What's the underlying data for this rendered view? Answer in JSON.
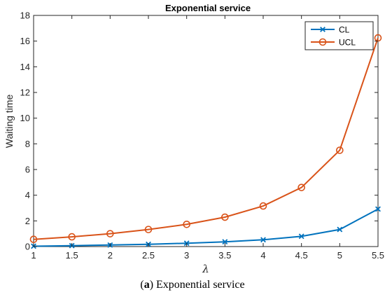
{
  "chart_data": {
    "type": "line",
    "title": "Exponential service",
    "xlabel": "λ",
    "ylabel": "Waiting time",
    "xlim": [
      1,
      5.5
    ],
    "ylim": [
      0,
      18
    ],
    "x_ticks": [
      "1",
      "1.5",
      "2",
      "2.5",
      "3",
      "3.5",
      "4",
      "4.5",
      "5",
      "5.5"
    ],
    "y_ticks": [
      "0",
      "2",
      "4",
      "6",
      "8",
      "10",
      "12",
      "14",
      "16",
      "18"
    ],
    "x": [
      1,
      1.5,
      2,
      2.5,
      3,
      3.5,
      4,
      4.5,
      5,
      5.5
    ],
    "series": [
      {
        "name": "CL",
        "color": "#0072BD",
        "marker": "x",
        "values": [
          0.03,
          0.07,
          0.12,
          0.18,
          0.26,
          0.37,
          0.53,
          0.8,
          1.33,
          2.92
        ]
      },
      {
        "name": "UCL",
        "color": "#D95319",
        "marker": "circle",
        "values": [
          0.56,
          0.76,
          1.0,
          1.33,
          1.73,
          2.29,
          3.16,
          4.6,
          7.5,
          16.25
        ]
      }
    ],
    "legend_position": "top-right",
    "grid": false
  },
  "caption": {
    "label": "(a)",
    "letter": "a",
    "text": "Exponential service"
  }
}
